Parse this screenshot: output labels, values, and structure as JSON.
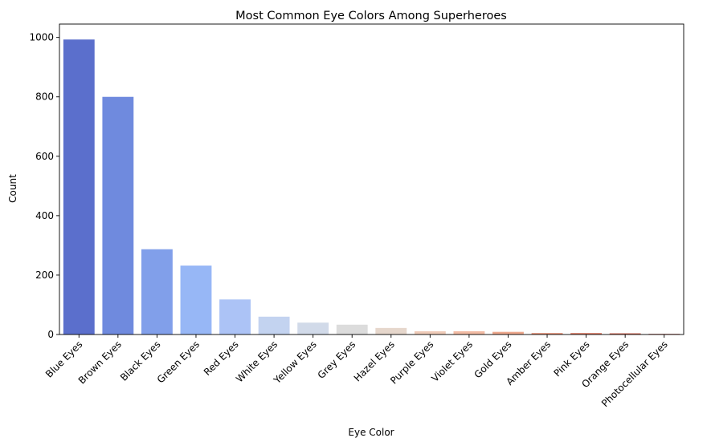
{
  "chart_data": {
    "type": "bar",
    "title": "Most Common Eye Colors Among Superheroes",
    "xlabel": "Eye Color",
    "ylabel": "Count",
    "ylim": [
      0,
      1045
    ],
    "yticks": [
      0,
      200,
      400,
      600,
      800,
      1000
    ],
    "grid": false,
    "categories": [
      "Blue Eyes",
      "Brown Eyes",
      "Black Eyes",
      "Green Eyes",
      "Red Eyes",
      "White Eyes",
      "Yellow Eyes",
      "Grey Eyes",
      "Hazel Eyes",
      "Purple Eyes",
      "Violet Eyes",
      "Gold Eyes",
      "Amber Eyes",
      "Pink Eyes",
      "Orange Eyes",
      "Photocellular Eyes"
    ],
    "values": [
      993,
      800,
      287,
      232,
      118,
      60,
      40,
      33,
      22,
      11,
      11,
      9,
      5,
      5,
      4,
      2
    ],
    "colors": [
      "#5b6fcc",
      "#6f8ade",
      "#819fea",
      "#97b7f6",
      "#acc3f6",
      "#c3d3f0",
      "#d1dae9",
      "#dcdcdc",
      "#e6d7cc",
      "#efcbb8",
      "#f2bba4",
      "#eda88d",
      "#e49279",
      "#da7c65",
      "#ce6451",
      "#b8443a"
    ]
  }
}
